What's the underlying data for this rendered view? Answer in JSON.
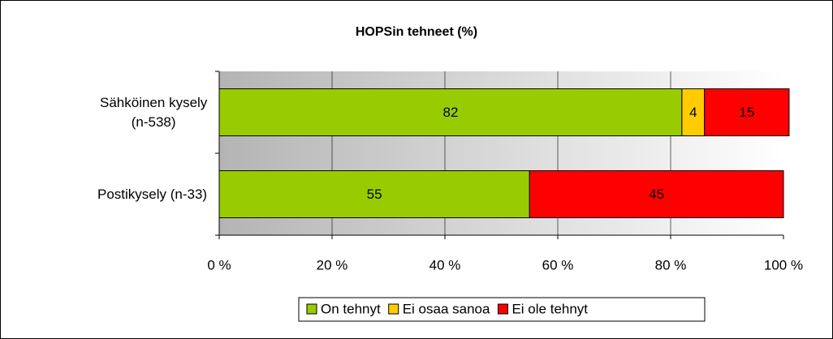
{
  "chart_data": {
    "type": "bar",
    "orientation": "horizontal",
    "stacked": true,
    "title": "HOPSin tehneet (%)",
    "categories": [
      "Sähköinen kysely\n(n-538)",
      "Postikysely (n-33)"
    ],
    "series": [
      {
        "name": "On tehnyt",
        "color": "#99cc00",
        "values": [
          82,
          55
        ]
      },
      {
        "name": "Ei osaa sanoa",
        "color": "#ffcc00",
        "values": [
          4,
          null
        ]
      },
      {
        "name": "Ei ole tehnyt",
        "color": "#ff0000",
        "values": [
          15,
          45
        ]
      }
    ],
    "xlim": [
      0,
      100
    ],
    "xticks": [
      {
        "value": 0,
        "label": "0 %"
      },
      {
        "value": 20,
        "label": "20 %"
      },
      {
        "value": 40,
        "label": "40 %"
      },
      {
        "value": 60,
        "label": "60 %"
      },
      {
        "value": 80,
        "label": "80 %"
      },
      {
        "value": 100,
        "label": "100 %"
      }
    ],
    "grid": true,
    "legend": "bottom"
  }
}
